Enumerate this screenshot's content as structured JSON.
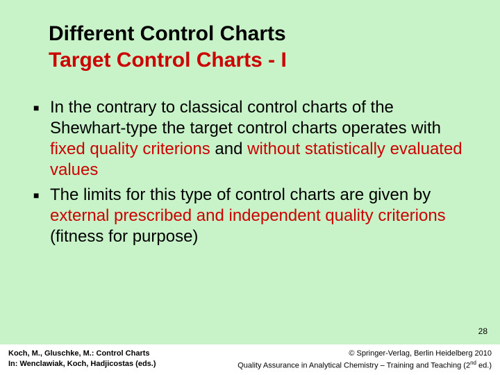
{
  "colors": {
    "background": "#c8f2c8",
    "title_black": "#000000",
    "title_red": "#cc0000",
    "body_text": "#000000",
    "highlight": "#cc0000",
    "footer_bg": "#ffffff"
  },
  "title": {
    "line1": "Different Control Charts",
    "line2": "Target Control Charts - I",
    "fontsize": 30,
    "weight": "bold"
  },
  "bullets": [
    {
      "parts": [
        {
          "text": "In the contrary to classical control charts of the Shewhart-type the target control charts operates with ",
          "hl": false
        },
        {
          "text": "fixed quality criterions",
          "hl": true
        },
        {
          "text": " and ",
          "hl": false
        },
        {
          "text": "without statistically evaluated values",
          "hl": true
        }
      ]
    },
    {
      "parts": [
        {
          "text": "The limits for this type of control charts are given by ",
          "hl": false
        },
        {
          "text": "external prescribed and independent quality criterions",
          "hl": true
        },
        {
          "text": " (fitness for purpose)",
          "hl": false
        }
      ]
    }
  ],
  "body_fontsize": 24,
  "page_number": "28",
  "footer": {
    "left_line1": "Koch, M., Gluschke, M.: Control Charts",
    "left_line2": "In: Wenclawiak, Koch, Hadjicostas (eds.)",
    "right_line1": "© Springer-Verlag, Berlin Heidelberg 2010",
    "right_line2_a": "Quality Assurance in Analytical Chemistry – Training and Teaching (2",
    "right_line2_sup": "nd",
    "right_line2_b": " ed.)",
    "fontsize": 11
  }
}
